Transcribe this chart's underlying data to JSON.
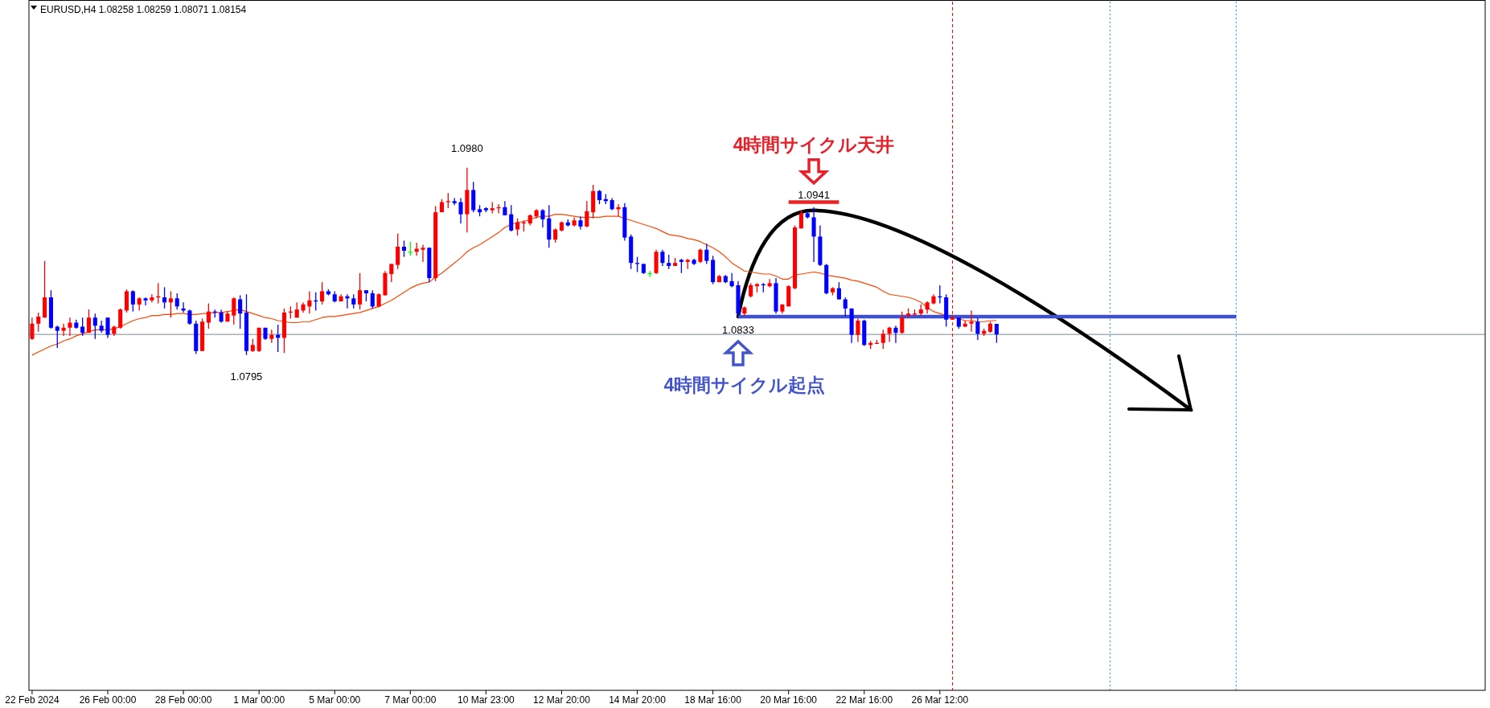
{
  "chart_data": {
    "type": "candlestick",
    "title": "EURUSD,H4  1.08258 1.08259 1.08071 1.08154",
    "ylim": [
      1.0464,
      1.1144
    ],
    "tick_labels": "x",
    "categories": [
      "22 Feb 2024",
      null,
      null,
      null,
      null,
      null,
      null,
      null,
      null,
      null,
      null,
      null,
      "26 Feb 00:00",
      null,
      null,
      null,
      null,
      null,
      null,
      null,
      null,
      null,
      null,
      null,
      "28 Feb 00:00",
      null,
      null,
      null,
      null,
      null,
      null,
      null,
      null,
      null,
      null,
      null,
      "1 Mar 00:00",
      null,
      null,
      null,
      null,
      null,
      null,
      null,
      null,
      null,
      null,
      null,
      "5 Mar 00:00",
      null,
      null,
      null,
      null,
      null,
      null,
      null,
      null,
      null,
      null,
      null,
      "7 Mar 00:00",
      null,
      null,
      null,
      null,
      null,
      null,
      null,
      null,
      null,
      null,
      null,
      "10 Mar 23:00",
      null,
      null,
      null,
      null,
      null,
      null,
      null,
      null,
      null,
      null,
      null,
      "12 Mar 20:00",
      null,
      null,
      null,
      null,
      null,
      null,
      null,
      null,
      null,
      null,
      null,
      "14 Mar 20:00",
      null,
      null,
      null,
      null,
      null,
      null,
      null,
      null,
      null,
      null,
      null,
      "18 Mar 16:00",
      null,
      null,
      null,
      null,
      null,
      null,
      null,
      null,
      null,
      null,
      null,
      "20 Mar 16:00",
      null,
      null,
      null,
      null,
      null,
      null,
      null,
      null,
      null,
      null,
      null,
      "22 Mar 16:00",
      null,
      null,
      null,
      null,
      null,
      null,
      null,
      null,
      null,
      null,
      null,
      "26 Mar 12:00",
      null,
      null,
      null,
      null,
      null,
      null,
      null,
      null,
      null,
      null,
      null,
      null,
      null,
      null,
      null,
      null,
      null,
      null,
      null,
      null,
      null,
      null,
      null,
      null,
      null,
      null,
      null,
      null,
      null,
      null,
      null,
      null,
      null,
      null,
      null,
      null,
      null,
      null,
      null,
      null,
      null,
      null,
      null,
      null,
      null,
      null,
      null,
      null,
      null,
      null,
      null,
      null,
      null,
      null,
      null,
      null,
      null,
      null,
      null,
      null,
      null,
      null,
      null,
      null,
      null,
      null,
      null,
      null,
      null,
      null,
      null,
      null,
      null,
      null,
      null,
      null,
      null,
      null,
      null,
      null,
      null,
      null,
      null,
      null,
      null,
      null
    ],
    "ohlc": [
      [
        1.0811,
        1.0832,
        1.081,
        1.0826
      ],
      [
        1.0826,
        1.0837,
        1.0818,
        1.0833
      ],
      [
        1.0832,
        1.0888,
        1.0832,
        1.0852
      ],
      [
        1.0852,
        1.0859,
        1.0821,
        1.0822
      ],
      [
        1.0823,
        1.0824,
        1.0802,
        1.0819
      ],
      [
        1.0819,
        1.0826,
        1.0814,
        1.0822
      ],
      [
        1.0822,
        1.0832,
        1.0814,
        1.0827
      ],
      [
        1.0827,
        1.083,
        1.0821,
        1.0822
      ],
      [
        1.0823,
        1.0832,
        1.0814,
        1.0817
      ],
      [
        1.0817,
        1.084,
        1.0817,
        1.0832
      ],
      [
        1.0832,
        1.0836,
        1.0811,
        1.0824
      ],
      [
        1.0824,
        1.0829,
        1.0817,
        1.0819
      ],
      [
        1.0832,
        1.0832,
        1.0812,
        1.0815
      ],
      [
        1.0816,
        1.0824,
        1.0814,
        1.0823
      ],
      [
        1.0822,
        1.0841,
        1.0821,
        1.084
      ],
      [
        1.0839,
        1.086,
        1.0837,
        1.0858
      ],
      [
        1.0858,
        1.0859,
        1.0838,
        1.0845
      ],
      [
        1.0845,
        1.0852,
        1.0839,
        1.0851
      ],
      [
        1.0851,
        1.0852,
        1.0844,
        1.0849
      ],
      [
        1.0849,
        1.0855,
        1.0847,
        1.0852
      ],
      [
        1.0852,
        1.0866,
        1.0846,
        1.0853
      ],
      [
        1.0852,
        1.0862,
        1.0841,
        1.0847
      ],
      [
        1.0847,
        1.0858,
        1.0832,
        1.0851
      ],
      [
        1.0851,
        1.0856,
        1.084,
        1.0843
      ],
      [
        1.0841,
        1.0847,
        1.0837,
        1.0839
      ],
      [
        1.0839,
        1.084,
        1.0825,
        1.0826
      ],
      [
        1.0826,
        1.0829,
        1.0796,
        1.0799
      ],
      [
        1.0799,
        1.0831,
        1.0799,
        1.0828
      ],
      [
        1.0827,
        1.0846,
        1.0821,
        1.0838
      ],
      [
        1.0838,
        1.084,
        1.0832,
        1.0837
      ],
      [
        1.0837,
        1.084,
        1.0827,
        1.0828
      ],
      [
        1.0828,
        1.0838,
        1.0828,
        1.0836
      ],
      [
        1.0834,
        1.0852,
        1.0825,
        1.0851
      ],
      [
        1.085,
        1.0854,
        1.0821,
        1.0836
      ],
      [
        1.0837,
        1.0855,
        1.0795,
        1.0799
      ],
      [
        1.0799,
        1.0811,
        1.0798,
        1.0805
      ],
      [
        1.0799,
        1.0822,
        1.0798,
        1.0822
      ],
      [
        1.0822,
        1.0822,
        1.081,
        1.0811
      ],
      [
        1.0811,
        1.082,
        1.0807,
        1.0815
      ],
      [
        1.0815,
        1.0825,
        1.0798,
        1.0812
      ],
      [
        1.0812,
        1.0841,
        1.0797,
        1.0837
      ],
      [
        1.0837,
        1.0843,
        1.0831,
        1.0838
      ],
      [
        1.0832,
        1.0847,
        1.0832,
        1.084
      ],
      [
        1.0839,
        1.0847,
        1.0837,
        1.0845
      ],
      [
        1.0843,
        1.0858,
        1.0836,
        1.0849
      ],
      [
        1.0849,
        1.0857,
        1.0839,
        1.0848
      ],
      [
        1.0848,
        1.0867,
        1.0845,
        1.0858
      ],
      [
        1.0858,
        1.086,
        1.0854,
        1.0855
      ],
      [
        1.0855,
        1.0858,
        1.0847,
        1.0848
      ],
      [
        1.0848,
        1.0855,
        1.0848,
        1.0853
      ],
      [
        1.0853,
        1.0855,
        1.0841,
        1.0851
      ],
      [
        1.0851,
        1.0855,
        1.0841,
        1.0845
      ],
      [
        1.0845,
        1.0876,
        1.084,
        1.0859
      ],
      [
        1.0859,
        1.0859,
        1.0848,
        1.0856
      ],
      [
        1.0856,
        1.0859,
        1.0841,
        1.0843
      ],
      [
        1.0843,
        1.0856,
        1.0842,
        1.0855
      ],
      [
        1.0854,
        1.0878,
        1.0854,
        1.0876
      ],
      [
        1.0875,
        1.0885,
        1.0867,
        1.0885
      ],
      [
        1.0884,
        1.0915,
        1.088,
        1.0902
      ],
      [
        1.0902,
        1.0908,
        1.0892,
        1.0898
      ],
      [
        1.0897,
        1.0907,
        1.0893,
        1.0897
      ],
      [
        1.0897,
        1.0906,
        1.0893,
        1.09
      ],
      [
        1.0899,
        1.0904,
        1.0887,
        1.0901
      ],
      [
        1.0901,
        1.0901,
        1.0867,
        1.0871
      ],
      [
        1.0871,
        1.0942,
        1.0868,
        1.0936
      ],
      [
        1.0936,
        1.0949,
        1.0936,
        1.0946
      ],
      [
        1.0946,
        1.0955,
        1.094,
        1.0947
      ],
      [
        1.0947,
        1.095,
        1.0943,
        1.0945
      ],
      [
        1.0946,
        1.095,
        1.0925,
        1.0934
      ],
      [
        1.0934,
        1.098,
        1.0916,
        1.0958
      ],
      [
        1.0958,
        1.0966,
        1.0936,
        1.0938
      ],
      [
        1.0939,
        1.0943,
        1.0932,
        1.0936
      ],
      [
        1.094,
        1.0941,
        1.0936,
        1.0938
      ],
      [
        1.0938,
        1.0946,
        1.0935,
        1.094
      ],
      [
        1.094,
        1.0944,
        1.0935,
        1.0941
      ],
      [
        1.0941,
        1.0947,
        1.0933,
        1.0933
      ],
      [
        1.0934,
        1.0943,
        1.0917,
        1.0918
      ],
      [
        1.0919,
        1.093,
        1.0913,
        1.0926
      ],
      [
        1.0925,
        1.0928,
        1.0917,
        1.0926
      ],
      [
        1.0925,
        1.0934,
        1.0923,
        1.0933
      ],
      [
        1.0932,
        1.0939,
        1.093,
        1.0938
      ],
      [
        1.0938,
        1.0939,
        1.0921,
        1.0929
      ],
      [
        1.093,
        1.0943,
        1.0901,
        1.0909
      ],
      [
        1.0909,
        1.092,
        1.0906,
        1.0919
      ],
      [
        1.0918,
        1.0927,
        1.0917,
        1.0926
      ],
      [
        1.0926,
        1.0929,
        1.0922,
        1.0923
      ],
      [
        1.0923,
        1.0931,
        1.0922,
        1.0928
      ],
      [
        1.0928,
        1.0932,
        1.0919,
        1.0922
      ],
      [
        1.0922,
        1.0947,
        1.0921,
        1.0937
      ],
      [
        1.0936,
        1.0963,
        1.093,
        1.0957
      ],
      [
        1.0957,
        1.0958,
        1.0944,
        1.0948
      ],
      [
        1.0949,
        1.0954,
        1.0944,
        1.0947
      ],
      [
        1.0948,
        1.095,
        1.0938,
        1.0939
      ],
      [
        1.0939,
        1.0944,
        1.0932,
        1.0941
      ],
      [
        1.0941,
        1.0945,
        1.0908,
        1.0911
      ],
      [
        1.0912,
        1.0914,
        1.088,
        1.0886
      ],
      [
        1.0886,
        1.0892,
        1.0877,
        1.0885
      ],
      [
        1.0885,
        1.0885,
        1.0875,
        1.0876
      ],
      [
        1.0876,
        1.0878,
        1.0872,
        1.0876
      ],
      [
        1.0876,
        1.0899,
        1.0875,
        1.0897
      ],
      [
        1.0897,
        1.0899,
        1.0883,
        1.0886
      ],
      [
        1.0886,
        1.0894,
        1.088,
        1.0883
      ],
      [
        1.0883,
        1.0891,
        1.0883,
        1.0886
      ],
      [
        1.0889,
        1.089,
        1.0876,
        1.0887
      ],
      [
        1.0887,
        1.089,
        1.088,
        1.0889
      ],
      [
        1.0889,
        1.089,
        1.0884,
        1.0885
      ],
      [
        1.0887,
        1.09,
        1.0886,
        1.0899
      ],
      [
        1.0899,
        1.0905,
        1.0885,
        1.0888
      ],
      [
        1.0889,
        1.0893,
        1.0865,
        1.0867
      ],
      [
        1.0867,
        1.0874,
        1.0867,
        1.0873
      ],
      [
        1.0873,
        1.0874,
        1.0866,
        1.0867
      ],
      [
        1.0868,
        1.0876,
        1.0862,
        1.0863
      ],
      [
        1.0864,
        1.0868,
        1.0833,
        1.0836
      ],
      [
        1.0836,
        1.0843,
        1.0834,
        1.0842
      ],
      [
        1.0853,
        1.0866,
        1.0852,
        1.0864
      ],
      [
        1.0863,
        1.0866,
        1.0857,
        1.0865
      ],
      [
        1.0865,
        1.0866,
        1.0857,
        1.0864
      ],
      [
        1.0863,
        1.087,
        1.0862,
        1.0866
      ],
      [
        1.0866,
        1.0871,
        1.0836,
        1.0838
      ],
      [
        1.0838,
        1.0845,
        1.0836,
        1.0845
      ],
      [
        1.0843,
        1.0864,
        1.0843,
        1.0863
      ],
      [
        1.0861,
        1.0923,
        1.086,
        1.0921
      ],
      [
        1.092,
        1.0938,
        1.092,
        1.0935
      ],
      [
        1.0935,
        1.0937,
        1.093,
        1.0931
      ],
      [
        1.0931,
        1.0941,
        1.0887,
        1.0912
      ],
      [
        1.0912,
        1.0923,
        1.0883,
        1.0884
      ],
      [
        1.0884,
        1.0885,
        1.0855,
        1.0856
      ],
      [
        1.0857,
        1.0862,
        1.0854,
        1.0861
      ],
      [
        1.0861,
        1.0867,
        1.085,
        1.085
      ],
      [
        1.085,
        1.0852,
        1.0833,
        1.0841
      ],
      [
        1.0841,
        1.0841,
        1.0807,
        1.0815
      ],
      [
        1.0815,
        1.0831,
        1.0808,
        1.0829
      ],
      [
        1.0829,
        1.083,
        1.0804,
        1.0805
      ],
      [
        1.0805,
        1.0809,
        1.0801,
        1.0807
      ],
      [
        1.0806,
        1.081,
        1.0806,
        1.0807
      ],
      [
        1.0807,
        1.082,
        1.0801,
        1.0816
      ],
      [
        1.0816,
        1.0823,
        1.0808,
        1.0822
      ],
      [
        1.0822,
        1.0824,
        1.0807,
        1.0817
      ],
      [
        1.0817,
        1.0838,
        1.0816,
        1.0832
      ],
      [
        1.0834,
        1.0841,
        1.0832,
        1.0836
      ],
      [
        1.0835,
        1.084,
        1.0834,
        1.0836
      ],
      [
        1.0836,
        1.0845,
        1.0834,
        1.084
      ],
      [
        1.084,
        1.0848,
        1.0836,
        1.0847
      ],
      [
        1.0846,
        1.0855,
        1.0845,
        1.0853
      ],
      [
        1.0853,
        1.0864,
        1.0846,
        1.0852
      ],
      [
        1.0852,
        1.0855,
        1.0823,
        1.083
      ],
      [
        1.083,
        1.0834,
        1.083,
        1.0832
      ],
      [
        1.0832,
        1.0832,
        1.0821,
        1.0823
      ],
      [
        1.0823,
        1.0829,
        1.0823,
        1.0826
      ],
      [
        1.0826,
        1.0839,
        1.0818,
        1.0828
      ],
      [
        1.0828,
        1.0832,
        1.081,
        1.0816
      ],
      [
        1.0816,
        1.0821,
        1.0814,
        1.0819
      ],
      [
        1.0818,
        1.0828,
        1.0817,
        1.0826
      ],
      [
        1.08258,
        1.08259,
        1.08071,
        1.08154
      ],
      null,
      null,
      null,
      null,
      null,
      null,
      null,
      null,
      null,
      null,
      null,
      null,
      null,
      null,
      null,
      null,
      null,
      null,
      null,
      null,
      null,
      null,
      null,
      null,
      null,
      null,
      null,
      null,
      null,
      null,
      null,
      null,
      null,
      null,
      null,
      null,
      null,
      null,
      null,
      null,
      null,
      null,
      null,
      null,
      null,
      null,
      null,
      null,
      null,
      null,
      null,
      null,
      null,
      null,
      null,
      null,
      null,
      null,
      null,
      null,
      null,
      null,
      null,
      null,
      null,
      null,
      null,
      null,
      null,
      null,
      null,
      null,
      null,
      null,
      null,
      null,
      null
    ],
    "colors": [
      "#ff0000",
      "#ff0000",
      "#ff0000",
      "#0000ff",
      "#0000ff",
      "#ff0000",
      "#ff0000",
      "#0000ff",
      "#0000ff",
      "#ff0000",
      "#0000ff",
      "#0000ff",
      "#0000ff",
      "#ff0000",
      "#ff0000",
      "#ff0000",
      "#0000ff",
      "#ff0000",
      "#0000ff",
      "#ff0000",
      "#ff0000",
      "#0000ff",
      "#ff0000",
      "#0000ff",
      "#0000ff",
      "#0000ff",
      "#0000ff",
      "#ff0000",
      "#ff0000",
      "#0000ff",
      "#0000ff",
      "#ff0000",
      "#ff0000",
      "#0000ff",
      "#0000ff",
      "#ff0000",
      "#ff0000",
      "#0000ff",
      "#ff0000",
      "#0000ff",
      "#ff0000",
      "#ff0000",
      "#ff0000",
      "#ff0000",
      "#ff0000",
      "#0000ff",
      "#ff0000",
      "#0000ff",
      "#0000ff",
      "#ff0000",
      "#0000ff",
      "#0000ff",
      "#ff0000",
      "#0000ff",
      "#0000ff",
      "#ff0000",
      "#ff0000",
      "#ff0000",
      "#ff0000",
      "#0000ff",
      "#00ff00",
      "#ff0000",
      "#ff0000",
      "#0000ff",
      "#ff0000",
      "#ff0000",
      "#ff0000",
      "#0000ff",
      "#0000ff",
      "#ff0000",
      "#0000ff",
      "#0000ff",
      "#0000ff",
      "#ff0000",
      "#ff0000",
      "#0000ff",
      "#0000ff",
      "#ff0000",
      "#ff0000",
      "#ff0000",
      "#ff0000",
      "#0000ff",
      "#0000ff",
      "#ff0000",
      "#ff0000",
      "#0000ff",
      "#ff0000",
      "#0000ff",
      "#ff0000",
      "#ff0000",
      "#0000ff",
      "#0000ff",
      "#0000ff",
      "#ff0000",
      "#0000ff",
      "#0000ff",
      "#0000ff",
      "#0000ff",
      "#00ff00",
      "#ff0000",
      "#0000ff",
      "#0000ff",
      "#ff0000",
      "#0000ff",
      "#ff0000",
      "#0000ff",
      "#ff0000",
      "#0000ff",
      "#0000ff",
      "#ff0000",
      "#0000ff",
      "#0000ff",
      "#0000ff",
      "#ff0000",
      "#ff0000",
      "#ff0000",
      "#0000ff",
      "#ff0000",
      "#0000ff",
      "#ff0000",
      "#ff0000",
      "#ff0000",
      "#ff0000",
      "#0000ff",
      "#0000ff",
      "#0000ff",
      "#0000ff",
      "#ff0000",
      "#0000ff",
      "#0000ff",
      "#0000ff",
      "#ff0000",
      "#0000ff",
      "#ff0000",
      "#ff0000",
      "#ff0000",
      "#ff0000",
      "#0000ff",
      "#ff0000",
      "#ff0000",
      "#ff0000",
      "#ff0000",
      "#ff0000",
      "#ff0000",
      "#0000ff",
      "#0000ff",
      "#ff0000",
      "#0000ff",
      "#ff0000",
      "#ff0000",
      "#0000ff",
      "#ff0000",
      "#ff0000",
      "#0000ff",
      null,
      null,
      null,
      null,
      null,
      null,
      null,
      null,
      null,
      null,
      null,
      null,
      null,
      null,
      null,
      null,
      null,
      null,
      null,
      null,
      null,
      null,
      null,
      null,
      null,
      null,
      null,
      null,
      null,
      null,
      null,
      null,
      null,
      null,
      null,
      null,
      null,
      null,
      null,
      null,
      null,
      null,
      null,
      null,
      null,
      null,
      null,
      null,
      null,
      null,
      null,
      null,
      null,
      null,
      null,
      null,
      null,
      null,
      null,
      null,
      null,
      null,
      null,
      null,
      null,
      null,
      null,
      null,
      null,
      null,
      null,
      null,
      null,
      null,
      null,
      null,
      null
    ],
    "series": [
      {
        "type": "line",
        "color": "#ff4500",
        "values": [
          1.0795,
          1.0798,
          1.0801,
          1.0804,
          1.0806,
          1.0809,
          1.0811,
          1.0814,
          1.0816,
          1.0818,
          1.082,
          1.082,
          1.082,
          1.0821,
          1.0823,
          1.0826,
          1.0829,
          1.0831,
          1.0832,
          1.0834,
          1.0834,
          1.0835,
          1.0835,
          1.0836,
          1.0836,
          1.0835,
          1.0835,
          1.0836,
          1.0836,
          1.0837,
          1.0837,
          1.0838,
          1.0839,
          1.084,
          1.0838,
          1.0836,
          1.0834,
          1.0832,
          1.0831,
          1.0829,
          1.0828,
          1.0827,
          1.0827,
          1.0828,
          1.0828,
          1.083,
          1.0832,
          1.0833,
          1.0833,
          1.0834,
          1.0835,
          1.0836,
          1.0837,
          1.0839,
          1.0841,
          1.0843,
          1.0846,
          1.0849,
          1.0853,
          1.0857,
          1.0861,
          1.0864,
          1.0866,
          1.0867,
          1.0872,
          1.0876,
          1.0881,
          1.0886,
          1.0891,
          1.0897,
          1.0901,
          1.0904,
          1.0908,
          1.0912,
          1.0916,
          1.0921,
          1.0924,
          1.0926,
          1.0927,
          1.0929,
          1.0931,
          1.0932,
          1.0932,
          1.0934,
          1.0934,
          1.0933,
          1.0932,
          1.0931,
          1.0931,
          1.0931,
          1.0931,
          1.0932,
          1.0932,
          1.0932,
          1.093,
          1.0928,
          1.0926,
          1.0924,
          1.0922,
          1.092,
          1.0917,
          1.0914,
          1.0913,
          1.0912,
          1.091,
          1.0909,
          1.0907,
          1.0904,
          1.0901,
          1.0897,
          1.0892,
          1.0886,
          1.0882,
          1.0878,
          1.0877,
          1.0876,
          1.0875,
          1.0875,
          1.0873,
          1.087,
          1.087,
          1.0874,
          1.0875,
          1.0876,
          1.0877,
          1.0876,
          1.0874,
          1.0873,
          1.0872,
          1.0871,
          1.0869,
          1.0868,
          1.0866,
          1.0864,
          1.0862,
          1.0858,
          1.0855,
          1.0854,
          1.0853,
          1.0852,
          1.085,
          1.0847,
          1.0842,
          1.0838,
          1.0836,
          null,
          1.0832,
          1.0831,
          1.0829,
          1.0829,
          1.0828,
          1.0828,
          1.0829,
          1.0829,
          null,
          null,
          null,
          null,
          null,
          null,
          null,
          null,
          null,
          null,
          null,
          null,
          null,
          null,
          null,
          null,
          null,
          null,
          null,
          null,
          null,
          null,
          null,
          null,
          null,
          null,
          null,
          null,
          null,
          null,
          null,
          null,
          null,
          null,
          null,
          null,
          null,
          null,
          null,
          null,
          null,
          null,
          null,
          null,
          null,
          null,
          null,
          null,
          null,
          null,
          null,
          null,
          null,
          null,
          null,
          null,
          null,
          null,
          null,
          null,
          null,
          null,
          null,
          null,
          null,
          null,
          null,
          null,
          null,
          null,
          null,
          null,
          null,
          null,
          null,
          null,
          null
        ]
      },
      {
        "type": "line",
        "color": "#4050cc",
        "values": [
          null,
          null,
          null,
          null,
          null,
          null,
          null,
          null,
          null,
          null,
          null,
          null,
          null,
          null,
          null,
          null,
          null,
          null,
          null,
          null,
          null,
          null,
          null,
          null,
          null,
          null,
          null,
          null,
          null,
          null,
          null,
          null,
          null,
          null,
          null,
          null,
          null,
          null,
          null,
          null,
          null,
          null,
          null,
          null,
          null,
          null,
          null,
          null,
          null,
          null,
          null,
          null,
          null,
          null,
          null,
          null,
          null,
          null,
          null,
          null,
          null,
          null,
          null,
          null,
          null,
          null,
          null,
          null,
          null,
          null,
          null,
          null,
          null,
          null,
          null,
          null,
          null,
          null,
          null,
          null,
          null,
          null,
          null,
          null,
          null,
          null,
          null,
          null,
          null,
          null,
          null,
          null,
          null,
          null,
          null,
          null,
          null,
          null,
          null,
          null,
          null,
          null,
          null,
          null,
          null,
          null,
          null,
          null,
          null,
          null,
          null,
          null,
          1.0833,
          1.0833,
          1.0833,
          1.0833,
          1.0833,
          1.0833,
          1.0833,
          1.0833,
          1.0833,
          1.0833,
          1.0833,
          1.0833,
          1.0833,
          1.0833,
          1.0833,
          1.0833,
          1.0833,
          1.0833,
          1.0833,
          1.0833,
          1.0833,
          1.0833,
          1.0833,
          1.0833,
          1.0833,
          1.0833,
          1.0833,
          1.0833,
          1.0833,
          1.0833,
          1.0833,
          1.0833,
          1.0833,
          1.0833,
          1.0833,
          1.0833,
          1.0833,
          1.0833,
          1.0833,
          1.0833,
          1.0833,
          1.0833,
          1.0833,
          1.0833,
          1.0833,
          1.0833,
          1.0833,
          1.0833,
          1.0833,
          1.0833,
          1.0833,
          1.0833,
          1.0833,
          1.0833,
          1.0833,
          1.0833,
          1.0833,
          1.0833,
          1.0833,
          1.0833,
          1.0833,
          1.0833,
          1.0833,
          1.0833,
          1.0833,
          1.0833,
          1.0833,
          1.0833,
          1.0833,
          1.0833,
          1.0833,
          1.0833,
          1.0833,
          1.0833,
          1.0833,
          1.0833,
          1.0833,
          1.0833,
          1.0833,
          1.0833,
          null,
          null,
          null,
          null,
          null,
          null,
          null,
          null,
          null,
          null,
          null,
          null,
          null,
          null,
          null,
          null,
          null,
          null,
          null,
          null,
          null,
          null,
          null,
          null,
          null,
          null,
          null,
          null,
          null,
          null,
          null,
          null,
          null,
          null,
          null,
          null,
          null,
          null,
          null
        ]
      },
      {
        "type": "line",
        "color": "#ee2222",
        "values": [
          null,
          null,
          null,
          null,
          null,
          null,
          null,
          null,
          null,
          null,
          null,
          null,
          null,
          null,
          null,
          null,
          null,
          null,
          null,
          null,
          null,
          null,
          null,
          null,
          null,
          null,
          null,
          null,
          null,
          null,
          null,
          null,
          null,
          null,
          null,
          null,
          null,
          null,
          null,
          null,
          null,
          null,
          null,
          null,
          null,
          null,
          null,
          null,
          null,
          null,
          null,
          null,
          null,
          null,
          null,
          null,
          null,
          null,
          null,
          null,
          null,
          null,
          null,
          null,
          null,
          null,
          null,
          null,
          null,
          null,
          null,
          null,
          null,
          null,
          null,
          null,
          null,
          null,
          null,
          null,
          null,
          null,
          null,
          null,
          null,
          null,
          null,
          null,
          null,
          null,
          null,
          null,
          null,
          null,
          null,
          null,
          null,
          null,
          null,
          null,
          null,
          null,
          null,
          null,
          null,
          null,
          null,
          null,
          null,
          null,
          null,
          null,
          null,
          null,
          null,
          null,
          null,
          null,
          null,
          null,
          1.0946,
          1.0946,
          1.0946,
          1.0946,
          1.0946,
          1.0946,
          1.0946,
          1.0946,
          1.0946,
          null,
          null,
          null,
          null,
          null,
          null,
          null,
          null,
          null,
          null,
          null,
          null,
          null,
          null,
          null,
          null,
          null,
          null,
          null,
          null,
          null,
          null,
          null,
          null,
          null,
          null,
          null,
          null,
          null,
          null,
          null,
          null,
          null,
          null,
          null,
          null,
          null,
          null,
          null,
          null,
          null,
          null,
          null,
          null,
          null,
          null,
          null,
          null,
          null,
          null,
          null,
          null,
          null,
          null,
          null,
          null,
          null,
          null,
          null,
          null,
          null,
          null,
          null,
          null,
          null,
          null,
          null,
          null,
          null,
          null,
          null,
          null,
          null,
          null,
          null,
          null,
          null,
          null,
          null,
          null,
          null,
          null,
          null,
          null,
          null,
          null,
          null,
          null,
          null,
          null,
          null,
          null,
          null,
          null,
          null,
          null,
          null,
          null,
          null,
          null,
          null,
          null
        ]
      }
    ],
    "ref_lines": [
      {
        "axis": "y",
        "value": 1.08154,
        "color": "#778899",
        "line_style": "solid"
      }
    ],
    "annotations": [
      {
        "text": "1.0980",
        "y": 1.098
      },
      {
        "text": "1.0795",
        "y": 1.0795
      },
      {
        "text": "1.0833",
        "y": 1.0833
      },
      {
        "text": "1.0941",
        "y": 1.0941
      },
      "4時間サイクル天井",
      "4時間サイクル起点"
    ]
  }
}
